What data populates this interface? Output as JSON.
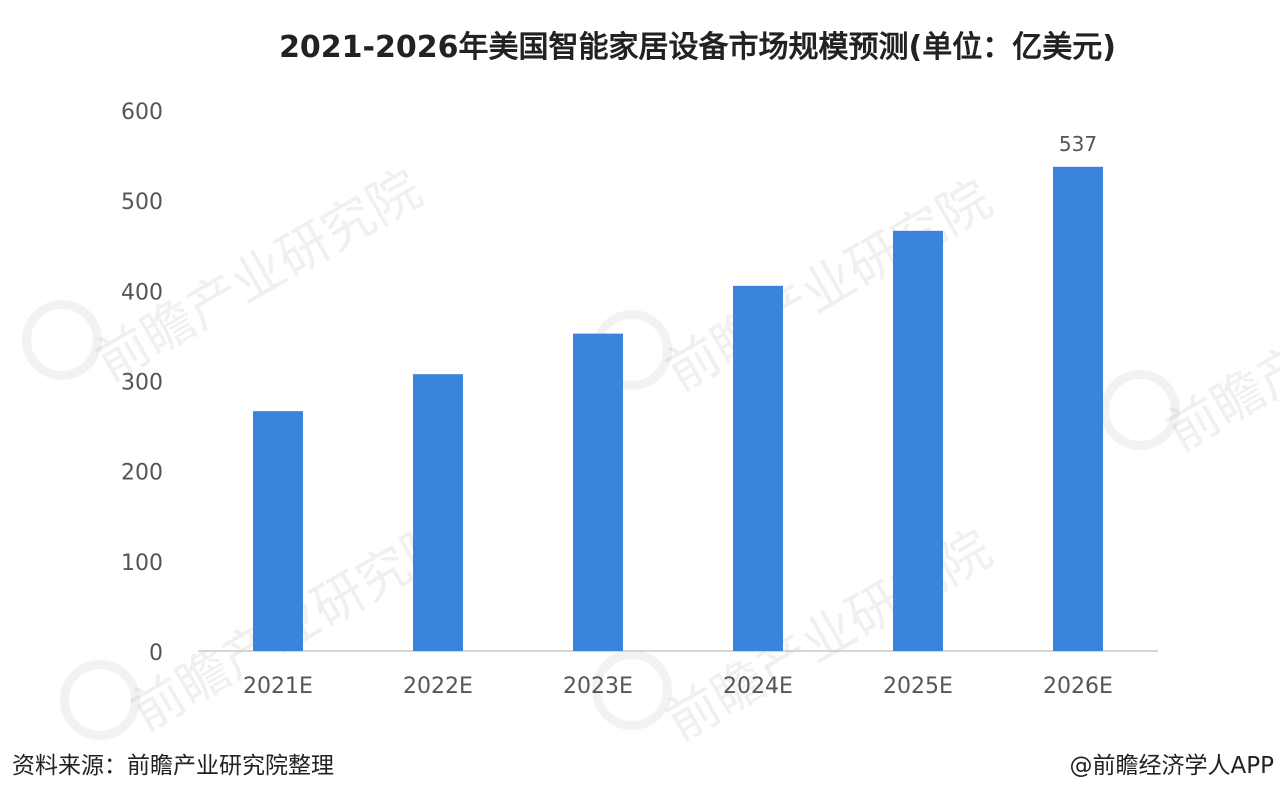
{
  "title": "2021-2026年美国智能家居设备市场规模预测(单位：亿美元)",
  "source": "资料来源：前瞻产业研究院整理",
  "credit": "@前瞻经济学人APP",
  "watermark": "前瞻产业研究院",
  "colors": {
    "bar": "#3b84dc",
    "axis": "#c8c8c8",
    "text": "#555555"
  },
  "chart_data": {
    "type": "bar",
    "title": "2021-2026年美国智能家居设备市场规模预测(单位：亿美元)",
    "categories": [
      "2021E",
      "2022E",
      "2023E",
      "2024E",
      "2025E",
      "2026E"
    ],
    "values": [
      266,
      307,
      352,
      405,
      466,
      537
    ],
    "data_labels": [
      null,
      null,
      null,
      null,
      null,
      "537"
    ],
    "ylim": [
      0,
      600
    ],
    "yticks": [
      0,
      100,
      200,
      300,
      400,
      500,
      600
    ],
    "xlabel": "",
    "ylabel": "",
    "grid": false,
    "legend": "none"
  }
}
